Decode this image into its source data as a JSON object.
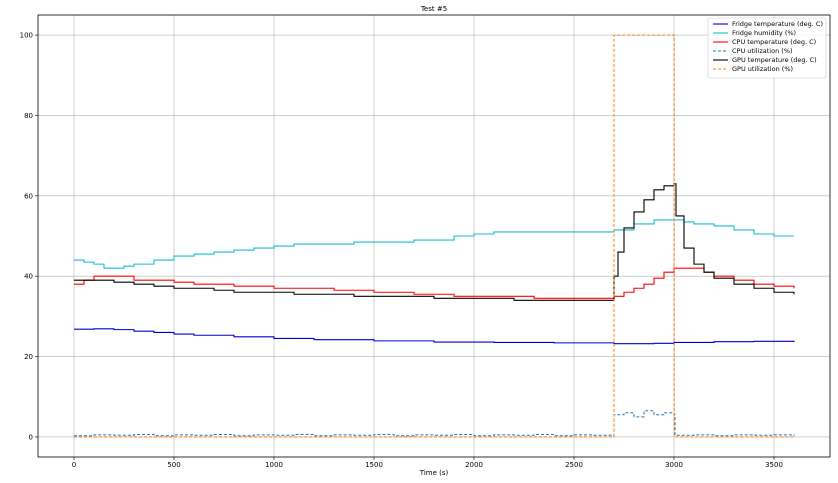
{
  "chart_data": {
    "type": "line",
    "title": "Test #5",
    "xlabel": "Time (s)",
    "ylabel": "",
    "xlim": [
      -180,
      3780
    ],
    "ylim": [
      -5,
      105
    ],
    "xticks": [
      0,
      500,
      1000,
      1500,
      2000,
      2500,
      3000,
      3500
    ],
    "yticks": [
      0,
      20,
      40,
      60,
      80,
      100
    ],
    "grid": true,
    "legend_position": "top-right",
    "series": [
      {
        "name": "Fridge temperature (deg. C)",
        "color": "#0000cc",
        "style": "solid",
        "x": [
          0,
          100,
          200,
          300,
          400,
          500,
          600,
          800,
          1000,
          1200,
          1500,
          1800,
          2100,
          2400,
          2700,
          2900,
          3000,
          3200,
          3400,
          3600
        ],
        "y": [
          26.8,
          26.9,
          26.7,
          26.3,
          26.0,
          25.6,
          25.3,
          24.9,
          24.5,
          24.2,
          23.9,
          23.6,
          23.5,
          23.4,
          23.2,
          23.3,
          23.5,
          23.7,
          23.8,
          23.6
        ]
      },
      {
        "name": "Fridge humidity (%)",
        "color": "#17becf",
        "style": "solid",
        "x": [
          0,
          50,
          100,
          150,
          200,
          250,
          300,
          350,
          400,
          450,
          500,
          550,
          600,
          700,
          800,
          900,
          1000,
          1100,
          1200,
          1300,
          1400,
          1500,
          1600,
          1700,
          1800,
          1900,
          2000,
          2100,
          2200,
          2300,
          2400,
          2500,
          2600,
          2700,
          2800,
          2900,
          2950,
          3000,
          3050,
          3100,
          3200,
          3300,
          3400,
          3500,
          3600
        ],
        "y": [
          44,
          43.5,
          43,
          42,
          42,
          42.5,
          43,
          43,
          44,
          44,
          45,
          45,
          45.5,
          46,
          46.5,
          47,
          47.5,
          48,
          48,
          48,
          48.5,
          48.5,
          48.5,
          49,
          49,
          50,
          50.5,
          51,
          51,
          51,
          51,
          51,
          51,
          51.5,
          53,
          54,
          54,
          54,
          53.5,
          53,
          52.5,
          51.5,
          50.5,
          50,
          50
        ]
      },
      {
        "name": "CPU temperature (deg. C)",
        "color": "#ff0000",
        "style": "solid",
        "x": [
          0,
          50,
          100,
          200,
          300,
          400,
          500,
          600,
          700,
          800,
          900,
          1000,
          1100,
          1200,
          1300,
          1400,
          1500,
          1600,
          1700,
          1800,
          1900,
          2000,
          2100,
          2200,
          2300,
          2400,
          2500,
          2600,
          2700,
          2750,
          2800,
          2850,
          2900,
          2950,
          3000,
          3050,
          3100,
          3150,
          3200,
          3300,
          3400,
          3500,
          3600
        ],
        "y": [
          38,
          39,
          40,
          40,
          39,
          39,
          38.5,
          38,
          38,
          37.5,
          37.5,
          37,
          37,
          37,
          36.5,
          36.5,
          36,
          36,
          35.5,
          35.5,
          35,
          35,
          35,
          35,
          34.5,
          34.5,
          34.5,
          34.5,
          35,
          36,
          37,
          38,
          39.5,
          41,
          42,
          42,
          42,
          41,
          40,
          39,
          38,
          37.5,
          37
        ]
      },
      {
        "name": "CPU utilization (%)",
        "color": "#1f77b4",
        "style": "dashed",
        "x": [
          0,
          100,
          200,
          300,
          400,
          500,
          600,
          700,
          800,
          900,
          1000,
          1100,
          1200,
          1300,
          1400,
          1500,
          1600,
          1700,
          1800,
          1900,
          2000,
          2100,
          2200,
          2300,
          2400,
          2500,
          2600,
          2695,
          2700,
          2750,
          2800,
          2850,
          2900,
          2950,
          3000,
          3005,
          3100,
          3200,
          3300,
          3400,
          3500,
          3600
        ],
        "y": [
          0.3,
          0.5,
          0.4,
          0.6,
          0.3,
          0.5,
          0.4,
          0.6,
          0.3,
          0.5,
          0.4,
          0.6,
          0.3,
          0.5,
          0.4,
          0.6,
          0.3,
          0.5,
          0.4,
          0.6,
          0.3,
          0.5,
          0.4,
          0.6,
          0.3,
          0.5,
          0.4,
          0.3,
          5.5,
          6,
          5,
          6.5,
          5.5,
          6,
          5.5,
          0.4,
          0.5,
          0.3,
          0.5,
          0.4,
          0.5,
          0.3
        ]
      },
      {
        "name": "GPU temperature (deg. C)",
        "color": "#000000",
        "style": "solid",
        "x": [
          0,
          50,
          100,
          200,
          300,
          400,
          500,
          600,
          700,
          800,
          900,
          1000,
          1100,
          1200,
          1300,
          1400,
          1500,
          1600,
          1700,
          1800,
          1900,
          2000,
          2100,
          2200,
          2300,
          2400,
          2500,
          2600,
          2699,
          2700,
          2720,
          2750,
          2800,
          2850,
          2900,
          2950,
          3000,
          3010,
          3050,
          3100,
          3150,
          3200,
          3300,
          3400,
          3500,
          3600
        ],
        "y": [
          39,
          39,
          39,
          38.5,
          38,
          37.5,
          37,
          37,
          36.5,
          36,
          36,
          36,
          35.5,
          35.5,
          35.5,
          35,
          35,
          35,
          35,
          34.5,
          34.5,
          34.5,
          34.5,
          34,
          34,
          34,
          34,
          34,
          34,
          40,
          46,
          52,
          56,
          59,
          61.5,
          62.5,
          63,
          55,
          47,
          43,
          41,
          39.5,
          38,
          37,
          36,
          35.5
        ]
      },
      {
        "name": "GPU utilization (%)",
        "color": "#ff7f0e",
        "style": "dashed",
        "x": [
          0,
          2699,
          2700,
          3000,
          3001,
          3600
        ],
        "y": [
          0,
          0,
          100,
          100,
          0,
          0
        ]
      }
    ]
  }
}
